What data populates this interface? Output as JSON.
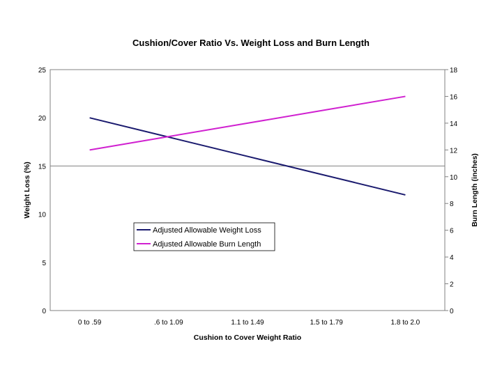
{
  "chart_data": {
    "type": "line",
    "title": "Cushion/Cover Ratio Vs. Weight Loss and Burn Length",
    "xlabel": "Cushion to Cover Weight Ratio",
    "ylabel": "Weight Loss (%)",
    "y2label": "Burn Length (inches)",
    "categories": [
      "0 to .59",
      ".6 to 1.09",
      "1.1 to 1.49",
      "1.5 to 1.79",
      "1.8 to 2.0"
    ],
    "ylim": [
      0,
      25
    ],
    "y2lim": [
      0,
      18
    ],
    "yticks": [
      "0",
      "5",
      "10",
      "15",
      "20",
      "25"
    ],
    "y2ticks": [
      "0",
      "2",
      "4",
      "6",
      "8",
      "10",
      "12",
      "14",
      "16",
      "18"
    ],
    "gridlines": [
      15
    ],
    "legend_position": "lower-left",
    "series": [
      {
        "name": "Adjusted Allowable Weight Loss",
        "axis": "left",
        "color": "#1a1a6e",
        "values": [
          20,
          18,
          16,
          14,
          12
        ]
      },
      {
        "name": "Adjusted Allowable Burn Length",
        "axis": "right",
        "color": "#d020d0",
        "values": [
          12,
          13,
          14,
          15,
          16
        ]
      }
    ]
  }
}
